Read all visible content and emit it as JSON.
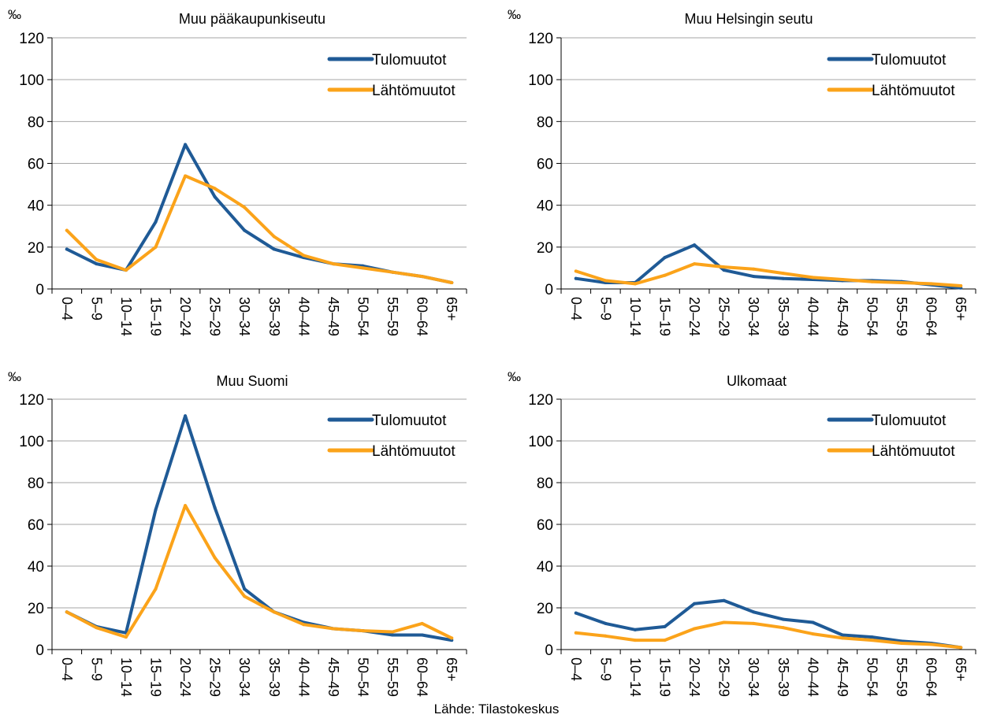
{
  "source_note": "Lähde: Tilastokeskus",
  "colors": {
    "tulo": "#1f5a96",
    "lahto": "#fba31a",
    "axis": "#000000",
    "grid": "#a6a6a6"
  },
  "chart_data": [
    {
      "type": "line",
      "title": "Muu pääkaupunkiseutu",
      "unit": "‰",
      "categories": [
        "0–4",
        "5–9",
        "10–14",
        "15–19",
        "20–24",
        "25–29",
        "30–34",
        "35–39",
        "40–44",
        "45–49",
        "50–54",
        "55–59",
        "60–64",
        "65+"
      ],
      "ylim": [
        0,
        120
      ],
      "yticks": [
        0,
        20,
        40,
        60,
        80,
        100,
        120
      ],
      "grid": true,
      "legend_position": "top-right",
      "series": [
        {
          "name": "Tulomuutot",
          "color": "#1f5a96",
          "values": [
            19,
            12,
            9,
            32,
            69,
            44,
            28,
            19,
            15,
            12,
            11,
            8,
            6,
            3
          ]
        },
        {
          "name": "Lähtömuutot",
          "color": "#fba31a",
          "values": [
            28,
            14,
            9,
            20,
            54,
            48,
            39,
            25,
            16,
            12,
            10,
            8,
            6,
            3
          ]
        }
      ]
    },
    {
      "type": "line",
      "title": "Muu Helsingin seutu",
      "unit": "‰",
      "categories": [
        "0–4",
        "5–9",
        "10–14",
        "15–19",
        "20–24",
        "25–29",
        "30–34",
        "35–39",
        "40–44",
        "45–49",
        "50–54",
        "55–59",
        "60–64",
        "65+"
      ],
      "ylim": [
        0,
        120
      ],
      "yticks": [
        0,
        20,
        40,
        60,
        80,
        100,
        120
      ],
      "grid": true,
      "legend_position": "top-right",
      "series": [
        {
          "name": "Tulomuutot",
          "color": "#1f5a96",
          "values": [
            5,
            3,
            3,
            15,
            21,
            9,
            6,
            5,
            4.5,
            4,
            4,
            3.5,
            2,
            0.5
          ]
        },
        {
          "name": "Lähtömuutot",
          "color": "#fba31a",
          "values": [
            8.5,
            4,
            2.5,
            6.5,
            12,
            10.5,
            9.5,
            7.5,
            5.5,
            4.5,
            3.5,
            3,
            2.5,
            1.5
          ]
        }
      ]
    },
    {
      "type": "line",
      "title": "Muu Suomi",
      "unit": "‰",
      "categories": [
        "0–4",
        "5–9",
        "10–14",
        "15–19",
        "20–24",
        "25–29",
        "30–34",
        "35–39",
        "40–44",
        "45–49",
        "50–54",
        "55–59",
        "60–64",
        "65+"
      ],
      "ylim": [
        0,
        120
      ],
      "yticks": [
        0,
        20,
        40,
        60,
        80,
        100,
        120
      ],
      "grid": true,
      "legend_position": "top-right",
      "series": [
        {
          "name": "Tulomuutot",
          "color": "#1f5a96",
          "values": [
            18,
            11,
            8,
            67,
            112,
            68,
            29,
            18,
            13,
            10,
            9,
            7,
            7,
            4.5
          ]
        },
        {
          "name": "Lähtömuutot",
          "color": "#fba31a",
          "values": [
            18,
            10.5,
            6,
            29,
            69,
            44,
            25.5,
            18,
            12,
            10,
            9,
            8.5,
            12.5,
            5.5
          ]
        }
      ]
    },
    {
      "type": "line",
      "title": "Ulkomaat",
      "unit": "‰",
      "categories": [
        "0–4",
        "5–9",
        "10–14",
        "15–19",
        "20–24",
        "25–29",
        "30–34",
        "35–39",
        "40–44",
        "45–49",
        "50–54",
        "55–59",
        "60–64",
        "65+"
      ],
      "ylim": [
        0,
        120
      ],
      "yticks": [
        0,
        20,
        40,
        60,
        80,
        100,
        120
      ],
      "grid": true,
      "legend_position": "top-right",
      "series": [
        {
          "name": "Tulomuutot",
          "color": "#1f5a96",
          "values": [
            17.5,
            12.5,
            9.5,
            11,
            22,
            23.5,
            18,
            14.5,
            13,
            7,
            6,
            4,
            3,
            1
          ]
        },
        {
          "name": "Lähtömuutot",
          "color": "#fba31a",
          "values": [
            8,
            6.5,
            4.5,
            4.5,
            10,
            13,
            12.5,
            10.5,
            7.5,
            5.5,
            4.5,
            3,
            2.5,
            1
          ]
        }
      ]
    }
  ]
}
